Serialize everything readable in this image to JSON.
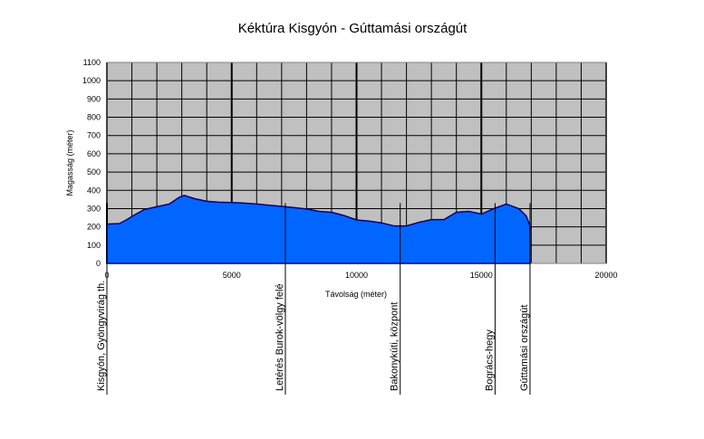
{
  "chart_data": {
    "type": "area",
    "title": "Kéktúra Kisgyón - Gúttamási országút",
    "xlabel": "Távolság (méter)",
    "ylabel": "Magasság (méter)",
    "xlim": [
      0,
      20000
    ],
    "ylim": [
      0,
      1100
    ],
    "x_ticks": [
      0,
      5000,
      10000,
      15000,
      20000
    ],
    "x_tick_labels": [
      "0",
      "5000",
      "10000",
      "15000",
      "20000"
    ],
    "y_ticks": [
      0,
      100,
      200,
      300,
      400,
      500,
      600,
      700,
      800,
      900,
      1000,
      1100
    ],
    "y_tick_labels": [
      "0",
      "100",
      "200",
      "300",
      "400",
      "500",
      "600",
      "700",
      "800",
      "900",
      "1000",
      "1100"
    ],
    "grid": true,
    "colors": {
      "plot_background": "#c0c0c0",
      "fill": "#0066ff",
      "line": "#000080",
      "grid": "#000000"
    },
    "profile": [
      {
        "x": 0,
        "y": 215
      },
      {
        "x": 500,
        "y": 218
      },
      {
        "x": 800,
        "y": 240
      },
      {
        "x": 1100,
        "y": 265
      },
      {
        "x": 1500,
        "y": 295
      },
      {
        "x": 2000,
        "y": 310
      },
      {
        "x": 2500,
        "y": 325
      },
      {
        "x": 2900,
        "y": 362
      },
      {
        "x": 3100,
        "y": 372
      },
      {
        "x": 3500,
        "y": 355
      },
      {
        "x": 4000,
        "y": 340
      },
      {
        "x": 4500,
        "y": 335
      },
      {
        "x": 5000,
        "y": 333
      },
      {
        "x": 5500,
        "y": 330
      },
      {
        "x": 6000,
        "y": 325
      },
      {
        "x": 6500,
        "y": 318
      },
      {
        "x": 7000,
        "y": 312
      },
      {
        "x": 7500,
        "y": 305
      },
      {
        "x": 8000,
        "y": 298
      },
      {
        "x": 8500,
        "y": 285
      },
      {
        "x": 9000,
        "y": 280
      },
      {
        "x": 9500,
        "y": 262
      },
      {
        "x": 10000,
        "y": 238
      },
      {
        "x": 10500,
        "y": 232
      },
      {
        "x": 11000,
        "y": 222
      },
      {
        "x": 11500,
        "y": 205
      },
      {
        "x": 12000,
        "y": 205
      },
      {
        "x": 12500,
        "y": 225
      },
      {
        "x": 13000,
        "y": 240
      },
      {
        "x": 13500,
        "y": 240
      },
      {
        "x": 14000,
        "y": 280
      },
      {
        "x": 14500,
        "y": 285
      },
      {
        "x": 15000,
        "y": 270
      },
      {
        "x": 15500,
        "y": 300
      },
      {
        "x": 16000,
        "y": 325
      },
      {
        "x": 16500,
        "y": 300
      },
      {
        "x": 16800,
        "y": 260
      },
      {
        "x": 16950,
        "y": 205
      }
    ],
    "markers": [
      {
        "x": 0,
        "label": "Kisgyón, Gyöngyvirág th."
      },
      {
        "x": 7150,
        "label": "Letérés Burok-völgy felé"
      },
      {
        "x": 11750,
        "label": "Bakonykúti, központ"
      },
      {
        "x": 15550,
        "label": "Bogrács-hegy"
      },
      {
        "x": 16950,
        "label": "Gúttamási országút"
      }
    ]
  }
}
